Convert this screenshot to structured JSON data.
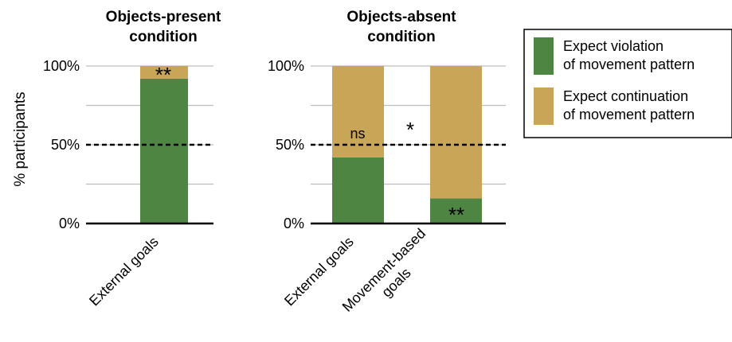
{
  "chart_data": {
    "type": "bar",
    "stacked": true,
    "ylabel": "% participants",
    "ylim": [
      0,
      100
    ],
    "yticks": [
      "0%",
      "50%",
      "100%"
    ],
    "grid": true,
    "reference_line": 50,
    "legend": {
      "placement": "right",
      "entries": [
        {
          "lines": [
            "Expect violation",
            "of movement pattern"
          ],
          "color": "#4e8542"
        },
        {
          "lines": [
            "Expect continuation",
            "of movement pattern"
          ],
          "color": "#c9a558"
        }
      ]
    },
    "panels": [
      {
        "title_lines": [
          "Objects-present",
          "condition"
        ],
        "categories": [
          [
            "External goals"
          ]
        ],
        "series": [
          {
            "values": [
              92
            ],
            "color": "#4e8542"
          },
          {
            "values": [
              8
            ],
            "color": "#c9a558"
          }
        ],
        "annotations": [
          "**"
        ]
      },
      {
        "title_lines": [
          "Objects-absent",
          "condition"
        ],
        "categories": [
          [
            "External goals"
          ],
          [
            "Movement-based",
            "goals"
          ]
        ],
        "series": [
          {
            "values": [
              42,
              16
            ],
            "color": "#4e8542"
          },
          {
            "values": [
              58,
              84
            ],
            "color": "#c9a558"
          }
        ],
        "annotations": [
          "ns",
          "**"
        ],
        "between_annotation": "*"
      }
    ]
  }
}
